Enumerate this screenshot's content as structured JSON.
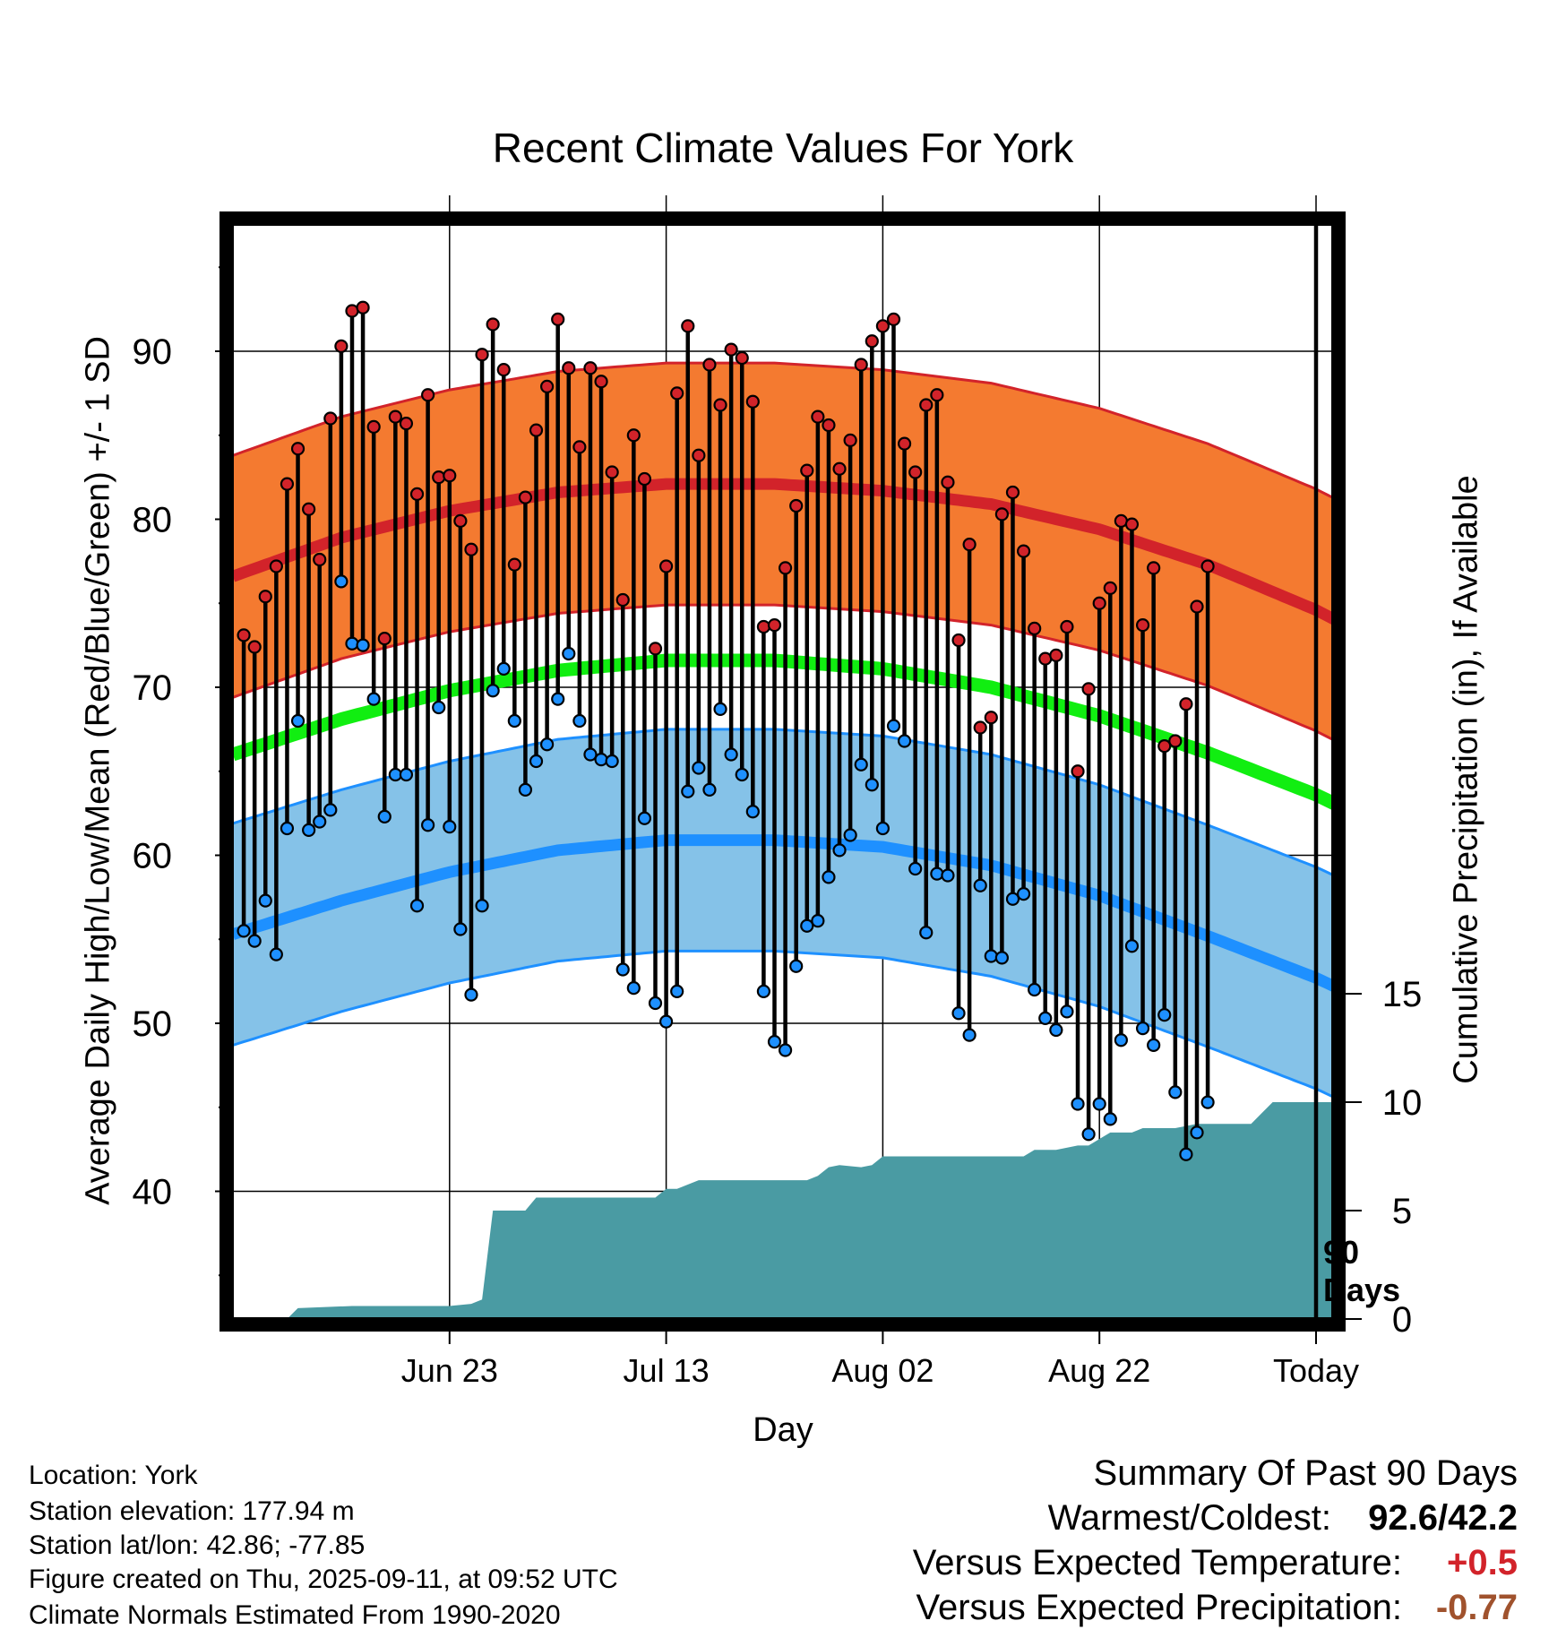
{
  "title": "Recent Climate Values For York",
  "ylabel_left": "Average Daily High/Low/Mean (Red/Blue/Green) +/- 1 SD",
  "ylabel_right": "Cumulative Precipitation (in), If Available",
  "xlabel": "Day",
  "period_label_line1": "90",
  "period_label_line2": "Days",
  "footer": {
    "location": "Location: York",
    "elevation": "Station elevation: 177.94 m",
    "latlon": "Station lat/lon: 42.86; -77.85",
    "created": "Figure created on Thu, 2025-09-11, at 09:52 UTC",
    "normals": "Climate Normals Estimated From 1990-2020"
  },
  "summary": {
    "title": "Summary Of Past 90 Days",
    "warm_cold_label": "Warmest/Coldest:",
    "warm_cold_value": "92.6/42.2",
    "temp_label": "Versus Expected Temperature:",
    "temp_value": "+0.5",
    "precip_label": "Versus Expected Precipitation:",
    "precip_value": "-0.77"
  },
  "colors": {
    "high_band": "#f47a30",
    "high_line": "#d2232a",
    "mean_line": "#11ee11",
    "low_band": "#85c2e8",
    "low_line": "#1e90ff",
    "precip": "#4a9ba3",
    "high_marker": "#d2232a",
    "low_marker": "#1e90ff",
    "temp_value_color": "#d2232a",
    "precip_value_color": "#a0522d"
  },
  "chart_data": {
    "type": "line",
    "x_start_day": -100,
    "x_end_day": 9,
    "x_ticks": [
      {
        "day": -80,
        "label": "Jun 23"
      },
      {
        "day": -60,
        "label": "Jul 13"
      },
      {
        "day": -40,
        "label": "Aug 02"
      },
      {
        "day": -20,
        "label": "Aug 22"
      },
      {
        "day": 0,
        "label": "Today"
      }
    ],
    "ylim_left": [
      32.5,
      97
    ],
    "y_ticks_left": [
      40,
      50,
      60,
      70,
      80,
      90
    ],
    "ylim_right": [
      0,
      18.6
    ],
    "y_ticks_right": [
      0,
      5,
      10,
      15
    ],
    "normals": {
      "days": [
        -100,
        -90,
        -80,
        -70,
        -60,
        -50,
        -40,
        -30,
        -20,
        -10,
        0,
        9
      ],
      "high_mean": [
        76.6,
        78.9,
        80.5,
        81.6,
        82.1,
        82.1,
        81.7,
        80.9,
        79.4,
        77.3,
        74.6,
        71.6
      ],
      "high_sd": 7.2,
      "mean": [
        66.0,
        68.1,
        69.8,
        71.0,
        71.6,
        71.6,
        71.1,
        70.0,
        68.3,
        66.1,
        63.6,
        60.8
      ],
      "low_mean": [
        55.3,
        57.3,
        59.0,
        60.3,
        60.9,
        60.9,
        60.5,
        59.4,
        57.6,
        55.2,
        52.7,
        50.0
      ],
      "low_sd": 6.6
    },
    "daily": {
      "start_day": -99,
      "high": [
        73.1,
        72.4,
        75.4,
        77.2,
        82.1,
        84.2,
        80.6,
        77.6,
        86.0,
        90.3,
        92.4,
        92.6,
        85.5,
        72.9,
        86.1,
        85.7,
        81.5,
        87.4,
        82.5,
        82.6,
        79.9,
        78.2,
        89.8,
        91.6,
        88.9,
        77.3,
        81.3,
        85.3,
        87.9,
        91.9,
        89.0,
        84.3,
        89.0,
        88.2,
        82.8,
        75.2,
        85.0,
        82.4,
        72.3,
        77.2,
        87.5,
        91.5,
        83.8,
        89.2,
        86.8,
        90.1,
        89.6,
        87.0,
        73.6,
        73.7,
        77.1,
        80.8,
        82.9,
        86.1,
        85.6,
        83.0,
        84.7,
        89.2,
        90.6,
        91.5,
        91.9,
        84.5,
        82.8,
        86.8,
        87.4,
        82.2,
        72.8,
        78.5,
        67.6,
        68.2,
        80.3,
        81.6,
        78.1,
        73.5,
        71.7,
        71.9,
        73.6,
        65.0,
        69.9,
        75.0,
        75.9,
        79.9,
        79.7,
        73.7,
        77.1,
        66.5,
        66.8,
        69.0,
        74.8,
        77.2
      ],
      "low": [
        55.5,
        54.9,
        57.3,
        54.1,
        61.6,
        68.0,
        61.5,
        62.0,
        62.7,
        76.3,
        72.6,
        72.5,
        69.3,
        62.3,
        64.8,
        64.8,
        57.0,
        61.8,
        68.8,
        61.7,
        55.6,
        51.7,
        57.0,
        69.8,
        71.1,
        68.0,
        63.9,
        65.6,
        66.6,
        69.3,
        72.0,
        68.0,
        66.0,
        65.7,
        65.6,
        53.2,
        52.1,
        62.2,
        51.2,
        50.1,
        51.9,
        63.8,
        65.2,
        63.9,
        68.7,
        66.0,
        64.8,
        62.6,
        51.9,
        48.9,
        48.4,
        53.4,
        55.8,
        56.1,
        58.7,
        60.3,
        61.2,
        65.4,
        64.2,
        61.6,
        67.7,
        66.8,
        59.2,
        55.4,
        58.9,
        58.8,
        50.6,
        49.3,
        58.2,
        54.0,
        53.9,
        57.4,
        57.7,
        52.0,
        50.3,
        49.6,
        50.7,
        45.2,
        43.4,
        45.2,
        44.3,
        49.0,
        54.6,
        49.7,
        48.7,
        50.5,
        45.9,
        42.2,
        43.5,
        45.3
      ]
    },
    "cumulative_precip": {
      "days": [
        -100,
        -95,
        -94,
        -89,
        -86,
        -85,
        -84,
        -80,
        -78,
        -77,
        -76,
        -75,
        -73,
        -72,
        -70,
        -66,
        -64,
        -62,
        -61,
        -60,
        -59,
        -57,
        -55,
        -50,
        -49,
        -48,
        -47,
        -46,
        -45,
        -44,
        -42,
        -41,
        -40,
        -35,
        -30,
        -29,
        -27,
        -26,
        -25,
        -24,
        -22,
        -21,
        -20,
        -19,
        -17,
        -16,
        -14,
        -13,
        -11,
        -10,
        -9,
        -6,
        -5,
        -4,
        -1,
        0,
        9
      ],
      "values": [
        0,
        0,
        0.5,
        0.6,
        0.6,
        0.6,
        0.6,
        0.6,
        0.7,
        0.9,
        5.0,
        5.0,
        5.0,
        5.6,
        5.6,
        5.6,
        5.6,
        5.6,
        5.6,
        6.0,
        6.0,
        6.4,
        6.4,
        6.4,
        6.4,
        6.4,
        6.4,
        6.6,
        7.0,
        7.1,
        7.0,
        7.1,
        7.5,
        7.5,
        7.5,
        7.5,
        7.5,
        7.8,
        7.8,
        7.8,
        8.0,
        8.0,
        8.3,
        8.6,
        8.6,
        8.8,
        8.8,
        8.8,
        9.0,
        9.0,
        9.0,
        9.0,
        9.5,
        10.0,
        10.0,
        10.0,
        10.0
      ]
    }
  }
}
